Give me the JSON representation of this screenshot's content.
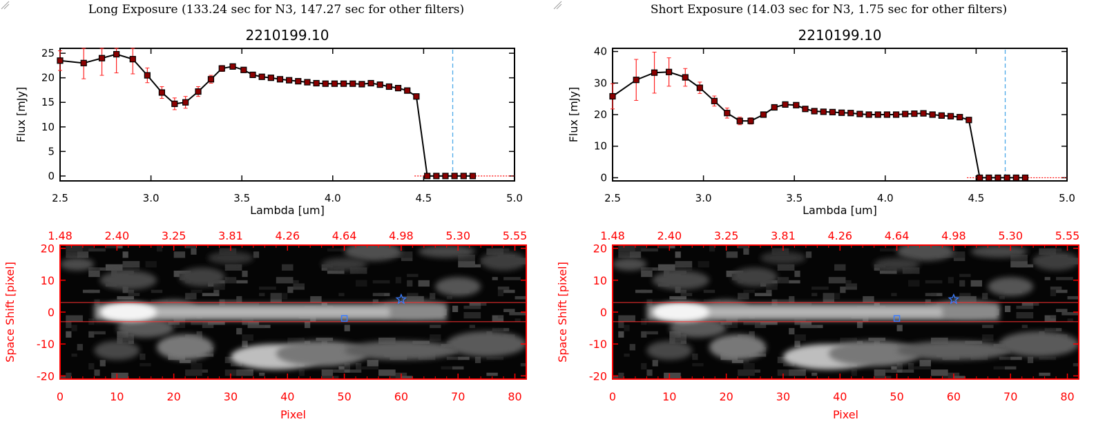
{
  "panels": [
    {
      "exposure_title": "Long Exposure (133.24 sec for N3, 147.27 sec for other filters)",
      "chart_data": [
        {
          "type": "line",
          "title": "2210199.10",
          "xlabel": "Lambda [um]",
          "ylabel": "Flux [mJy]",
          "xlim": [
            2.5,
            5.0
          ],
          "ylim": [
            -1,
            26
          ],
          "xticks": [
            "2.5",
            "3.0",
            "3.5",
            "4.0",
            "4.5",
            "5.0"
          ],
          "yticks": [
            "0",
            "5",
            "10",
            "15",
            "20",
            "25"
          ],
          "x": [
            2.5,
            2.63,
            2.73,
            2.81,
            2.9,
            2.98,
            3.06,
            3.13,
            3.19,
            3.26,
            3.33,
            3.39,
            3.45,
            3.51,
            3.56,
            3.61,
            3.66,
            3.71,
            3.76,
            3.81,
            3.86,
            3.91,
            3.96,
            4.01,
            4.06,
            4.11,
            4.16,
            4.21,
            4.26,
            4.31,
            4.36,
            4.41,
            4.46,
            4.52,
            4.57,
            4.62,
            4.67,
            4.72,
            4.77
          ],
          "y": [
            23.5,
            23.0,
            24.0,
            24.8,
            23.8,
            20.5,
            17.0,
            14.7,
            15.0,
            17.2,
            19.7,
            21.9,
            22.3,
            21.6,
            20.6,
            20.2,
            20.0,
            19.7,
            19.5,
            19.3,
            19.1,
            18.9,
            18.8,
            18.8,
            18.8,
            18.8,
            18.7,
            18.9,
            18.6,
            18.2,
            17.9,
            17.4,
            16.2,
            0,
            0,
            0,
            0,
            0,
            0
          ],
          "yerr": [
            2.0,
            3.2,
            3.5,
            3.8,
            3.0,
            1.5,
            1.2,
            1.2,
            1.2,
            1.0,
            0.8,
            0.6,
            0.5,
            0.4,
            0.3,
            0.3,
            0.3,
            0.3,
            0.3,
            0.3,
            0.3,
            0.3,
            0.3,
            0.3,
            0.3,
            0.3,
            0.3,
            0.3,
            0.3,
            0.3,
            0.3,
            0.3,
            0.3,
            0,
            0,
            0,
            0,
            0,
            0
          ],
          "vline_x": 4.66,
          "colors": {
            "line": "#000000",
            "marker": "#8b0000",
            "error": "#ff2020",
            "vline": "#4aa8e8",
            "zero_line": "#ff0000"
          }
        },
        {
          "type": "heatmap",
          "xlabel": "Pixel",
          "ylabel": "Space Shift [pixel]",
          "xlim": [
            0,
            82
          ],
          "ylim": [
            -21,
            21
          ],
          "xticks": [
            "0",
            "10",
            "20",
            "30",
            "40",
            "50",
            "60",
            "70",
            "80"
          ],
          "yticks": [
            "-20",
            "-10",
            "0",
            "10",
            "20"
          ],
          "top_axis_ticks": [
            "1.48",
            "2.40",
            "3.25",
            "3.81",
            "4.26",
            "4.64",
            "4.98",
            "5.30",
            "5.55"
          ],
          "aperture_lines_y": [
            3,
            -3
          ],
          "markers": [
            {
              "shape": "star",
              "x": 60,
              "y": 4
            },
            {
              "shape": "square",
              "x": 50,
              "y": -2
            }
          ],
          "colors": {
            "axes": "#ff0000",
            "aperture": "#ff3030",
            "marker": "#3a7cff"
          }
        }
      ]
    },
    {
      "exposure_title": "Short Exposure (14.03 sec for N3, 1.75 sec for other filters)",
      "chart_data": [
        {
          "type": "line",
          "title": "2210199.10",
          "xlabel": "Lambda [um]",
          "ylabel": "Flux [mJy]",
          "xlim": [
            2.5,
            5.0
          ],
          "ylim": [
            -1,
            41
          ],
          "xticks": [
            "2.5",
            "3.0",
            "3.5",
            "4.0",
            "4.5",
            "5.0"
          ],
          "yticks": [
            "0",
            "10",
            "20",
            "30",
            "40"
          ],
          "x": [
            2.5,
            2.63,
            2.73,
            2.81,
            2.9,
            2.98,
            3.06,
            3.13,
            3.2,
            3.26,
            3.33,
            3.39,
            3.45,
            3.51,
            3.56,
            3.61,
            3.66,
            3.71,
            3.76,
            3.81,
            3.86,
            3.91,
            3.96,
            4.01,
            4.06,
            4.11,
            4.16,
            4.21,
            4.26,
            4.31,
            4.36,
            4.41,
            4.46,
            4.52,
            4.57,
            4.62,
            4.67,
            4.72,
            4.77
          ],
          "y": [
            25.8,
            31.0,
            33.3,
            33.5,
            31.8,
            28.5,
            24.3,
            20.5,
            18.0,
            18.0,
            20.0,
            22.3,
            23.2,
            23.0,
            21.8,
            21.1,
            20.9,
            20.8,
            20.6,
            20.5,
            20.2,
            20.0,
            20.0,
            20.0,
            20.0,
            20.2,
            20.3,
            20.4,
            20.0,
            19.7,
            19.5,
            19.2,
            18.3,
            0,
            0,
            0,
            0,
            0,
            0
          ],
          "yerr": [
            4.0,
            6.5,
            6.5,
            4.5,
            2.8,
            1.8,
            1.6,
            1.6,
            1.2,
            1.0,
            0.8,
            0.6,
            0.5,
            0.5,
            0.4,
            0.4,
            0.4,
            0.4,
            0.4,
            0.4,
            0.4,
            0.4,
            0.4,
            0.4,
            0.4,
            0.4,
            0.4,
            0.4,
            0.4,
            0.4,
            0.4,
            0.4,
            0.4,
            0,
            0,
            0,
            0,
            0,
            0
          ],
          "vline_x": 4.66,
          "colors": {
            "line": "#000000",
            "marker": "#8b0000",
            "error": "#ff2020",
            "vline": "#4aa8e8",
            "zero_line": "#ff0000"
          }
        },
        {
          "type": "heatmap",
          "xlabel": "Pixel",
          "ylabel": "Space Shift [pixel]",
          "xlim": [
            0,
            82
          ],
          "ylim": [
            -21,
            21
          ],
          "xticks": [
            "0",
            "10",
            "20",
            "30",
            "40",
            "50",
            "60",
            "70",
            "80"
          ],
          "yticks": [
            "-20",
            "-10",
            "0",
            "10",
            "20"
          ],
          "top_axis_ticks": [
            "1.48",
            "2.40",
            "3.25",
            "3.81",
            "4.26",
            "4.64",
            "4.98",
            "5.30",
            "5.55"
          ],
          "aperture_lines_y": [
            3,
            -3
          ],
          "markers": [
            {
              "shape": "star",
              "x": 60,
              "y": 4
            },
            {
              "shape": "square",
              "x": 50,
              "y": -2
            }
          ],
          "colors": {
            "axes": "#ff0000",
            "aperture": "#ff3030",
            "marker": "#3a7cff"
          }
        }
      ]
    }
  ]
}
